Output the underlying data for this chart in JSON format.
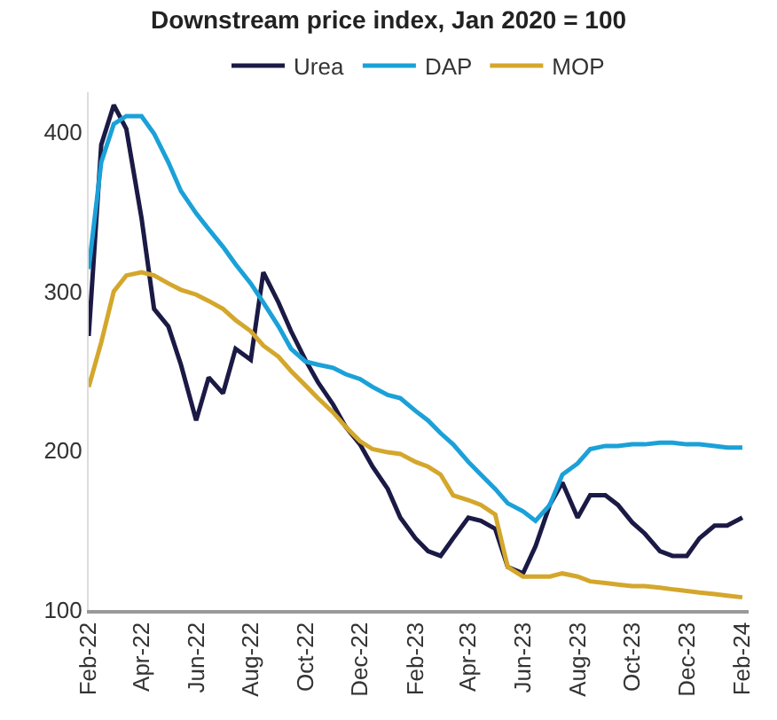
{
  "chart_data": {
    "type": "line",
    "title": "Downstream price index, Jan 2020 = 100",
    "x": [
      "2022-02-01",
      "2022-02-15",
      "2022-03-01",
      "2022-03-15",
      "2022-04-01",
      "2022-04-15",
      "2022-05-01",
      "2022-05-15",
      "2022-06-01",
      "2022-06-15",
      "2022-07-01",
      "2022-07-15",
      "2022-08-01",
      "2022-08-15",
      "2022-09-01",
      "2022-09-15",
      "2022-10-01",
      "2022-10-15",
      "2022-11-01",
      "2022-11-15",
      "2022-12-01",
      "2022-12-15",
      "2023-01-01",
      "2023-01-15",
      "2023-02-01",
      "2023-02-15",
      "2023-03-01",
      "2023-03-15",
      "2023-04-01",
      "2023-04-15",
      "2023-05-01",
      "2023-05-15",
      "2023-06-01",
      "2023-06-15",
      "2023-07-01",
      "2023-07-15",
      "2023-08-01",
      "2023-08-15",
      "2023-09-01",
      "2023-09-15",
      "2023-10-01",
      "2023-10-15",
      "2023-11-01",
      "2023-11-15",
      "2023-12-01",
      "2023-12-15",
      "2024-01-01",
      "2024-01-15",
      "2024-02-01"
    ],
    "series": [
      {
        "name": "Urea",
        "color": "#1b1a45",
        "values": [
          272,
          392,
          417,
          402,
          346,
          289,
          278,
          254,
          219,
          246,
          236,
          264,
          257,
          312,
          293,
          275,
          257,
          243,
          229,
          215,
          204,
          190,
          176,
          158,
          145,
          137,
          134,
          145,
          158,
          156,
          151,
          127,
          123,
          140,
          166,
          180,
          158,
          172,
          172,
          166,
          155,
          148,
          137,
          134,
          134,
          145,
          153,
          153,
          158
        ]
      },
      {
        "name": "DAP",
        "color": "#1ba1d8",
        "values": [
          314,
          381,
          405,
          410,
          410,
          399,
          381,
          363,
          349,
          339,
          328,
          317,
          305,
          293,
          278,
          264,
          256,
          254,
          252,
          248,
          245,
          240,
          235,
          233,
          225,
          219,
          211,
          204,
          193,
          185,
          176,
          167,
          162,
          156,
          166,
          185,
          192,
          201,
          203,
          203,
          204,
          204,
          205,
          205,
          204,
          204,
          203,
          202,
          202
        ]
      },
      {
        "name": "MOP",
        "color": "#d4a72c",
        "values": [
          240,
          268,
          300,
          310,
          312,
          310,
          305,
          301,
          298,
          294,
          289,
          282,
          275,
          266,
          259,
          250,
          241,
          233,
          224,
          215,
          206,
          201,
          199,
          198,
          193,
          190,
          185,
          172,
          169,
          166,
          160,
          127,
          121,
          121,
          121,
          123,
          121,
          118,
          117,
          116,
          115,
          115,
          114,
          113,
          112,
          111,
          110,
          109,
          108
        ]
      }
    ],
    "xlim": [
      "2022-02-01",
      "2024-02-08"
    ],
    "xticks": [
      {
        "value": "2022-02-01",
        "label": "Feb-22"
      },
      {
        "value": "2022-04-01",
        "label": "Apr-22"
      },
      {
        "value": "2022-06-01",
        "label": "Jun-22"
      },
      {
        "value": "2022-08-01",
        "label": "Aug-22"
      },
      {
        "value": "2022-10-01",
        "label": "Oct-22"
      },
      {
        "value": "2022-12-01",
        "label": "Dec-22"
      },
      {
        "value": "2023-02-01",
        "label": "Feb-23"
      },
      {
        "value": "2023-04-01",
        "label": "Apr-23"
      },
      {
        "value": "2023-06-01",
        "label": "Jun-23"
      },
      {
        "value": "2023-08-01",
        "label": "Aug-23"
      },
      {
        "value": "2023-10-01",
        "label": "Oct-23"
      },
      {
        "value": "2023-12-01",
        "label": "Dec-23"
      },
      {
        "value": "2024-02-01",
        "label": "Feb-24"
      }
    ],
    "ylim": [
      100,
      425
    ],
    "yticks": [
      100,
      200,
      300,
      400
    ],
    "grid": false,
    "legend": "top",
    "marker": "none",
    "line_style": "solid"
  }
}
